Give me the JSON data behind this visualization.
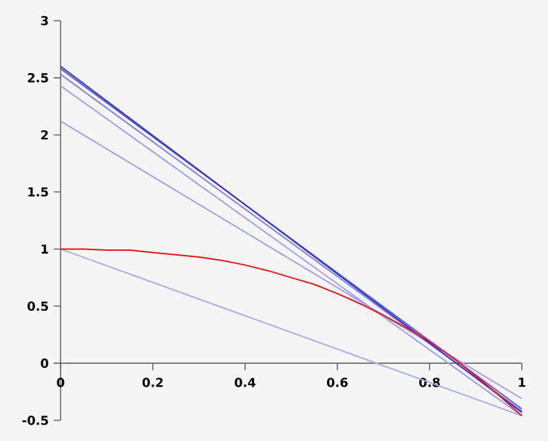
{
  "chart_data": {
    "type": "line",
    "xlim": [
      0,
      1
    ],
    "ylim": [
      -0.5,
      3
    ],
    "xticks": [
      0,
      0.2,
      0.4,
      0.6,
      0.8,
      1
    ],
    "yticks": [
      -0.5,
      0,
      0.5,
      1,
      1.5,
      2,
      2.5,
      3
    ],
    "grid": false,
    "marker": "none",
    "line_style": "solid",
    "series": [
      {
        "color": "#aaaaf0",
        "x": [
          0,
          1
        ],
        "values": [
          1,
          -0.46
        ]
      },
      {
        "color": "#9c9cf0",
        "x": [
          0,
          1
        ],
        "values": [
          2.12,
          -0.31
        ]
      },
      {
        "color": "#9c9cf0",
        "x": [
          0,
          1
        ],
        "values": [
          2.43,
          -0.46
        ]
      },
      {
        "color": "#8080e8",
        "x": [
          0,
          1
        ],
        "values": [
          2.53,
          -0.42
        ]
      },
      {
        "color": "#5555dd",
        "x": [
          0,
          1
        ],
        "values": [
          2.58,
          -0.4
        ]
      },
      {
        "color": "#3333cc",
        "x": [
          0,
          1
        ],
        "values": [
          2.6,
          -0.43
        ]
      },
      {
        "color": "#ee1111",
        "x": [
          0,
          0.05,
          0.1,
          0.15,
          0.2,
          0.25,
          0.3,
          0.35,
          0.4,
          0.45,
          0.5,
          0.55,
          0.6,
          0.65,
          0.7,
          0.75,
          0.8,
          0.85,
          0.9,
          0.95,
          1
        ],
        "values": [
          1,
          1,
          0.99,
          0.99,
          0.97,
          0.95,
          0.93,
          0.9,
          0.86,
          0.81,
          0.75,
          0.69,
          0.61,
          0.52,
          0.42,
          0.31,
          0.19,
          0.05,
          -0.11,
          -0.28,
          -0.46
        ]
      }
    ]
  }
}
